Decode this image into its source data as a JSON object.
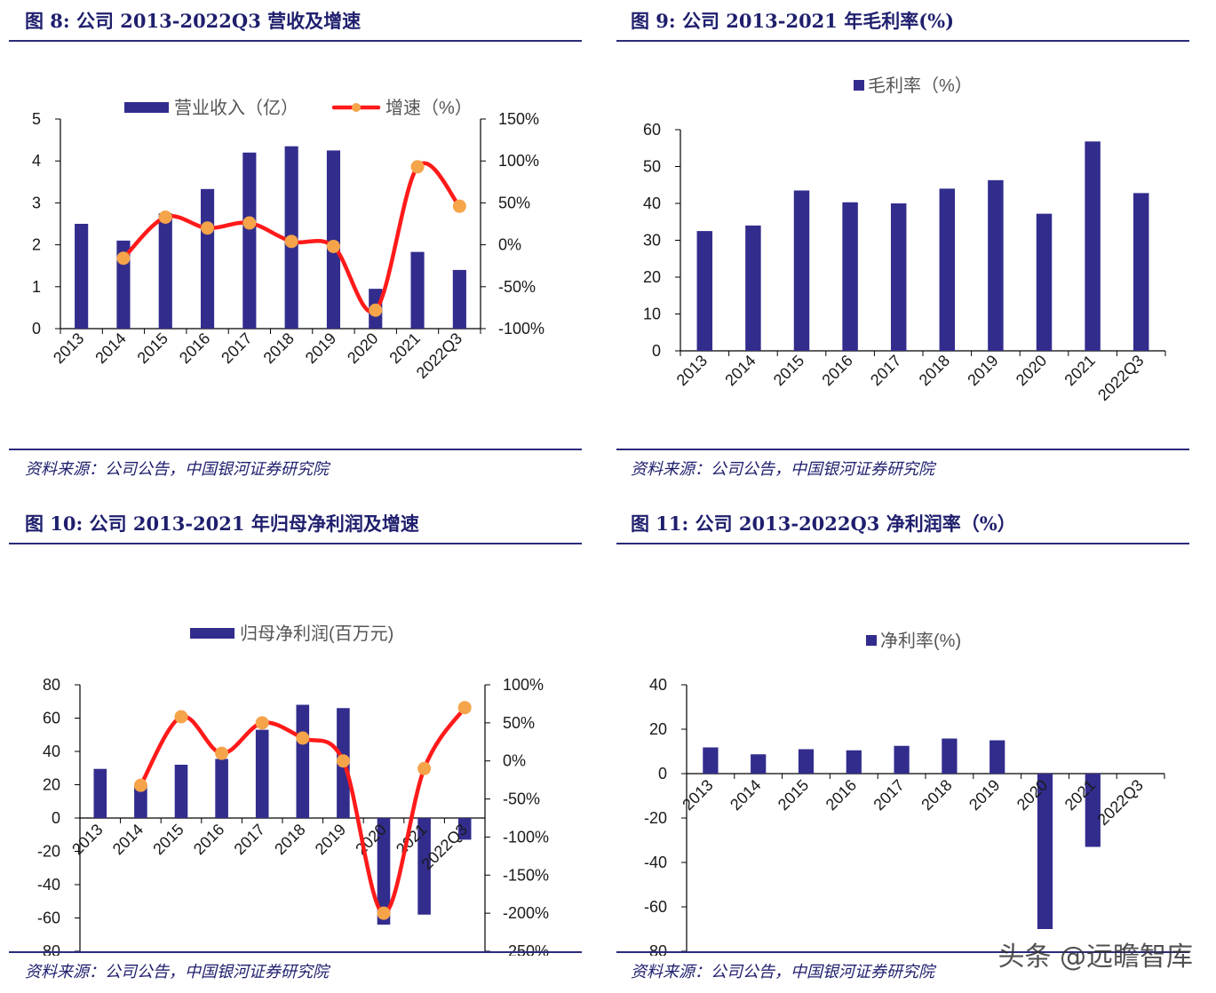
{
  "figures": [
    {
      "title": "图 8:  公司 2013-2022Q3 营收及增速",
      "source": "资料来源：公司公告，中国银河证券研究院",
      "chart_data": {
        "type": "bar",
        "categories": [
          "2013",
          "2014",
          "2015",
          "2016",
          "2017",
          "2018",
          "2019",
          "2020",
          "2021",
          "2022Q3"
        ],
        "series": [
          {
            "name": "营业收入（亿）",
            "type": "bar",
            "axis": "left",
            "values": [
              2.5,
              2.1,
              2.75,
              3.33,
              4.2,
              4.35,
              4.25,
              0.95,
              1.83,
              1.4
            ]
          },
          {
            "name": "增速（%）",
            "type": "line",
            "axis": "right",
            "values": [
              null,
              -16,
              33,
              20,
              26,
              4,
              -2,
              -78,
              93,
              46
            ]
          }
        ],
        "ylim_left": [
          0,
          5
        ],
        "yticks_left": [
          "0",
          "1",
          "2",
          "3",
          "4",
          "5"
        ],
        "ylim_right": [
          -100,
          150
        ],
        "yticks_right": [
          "-100%",
          "-50%",
          "0%",
          "50%",
          "100%",
          "150%"
        ],
        "bar_color": "#322c8d",
        "line_color": "#ff1a1a",
        "marker_color": "#f5a44a",
        "legend": "top"
      }
    },
    {
      "title": "图 9:  公司 2013-2021 年毛利率(%)",
      "source": "资料来源：公司公告，中国银河证券研究院",
      "chart_data": {
        "type": "bar",
        "categories": [
          "2013",
          "2014",
          "2015",
          "2016",
          "2017",
          "2018",
          "2019",
          "2020",
          "2021",
          "2022Q3"
        ],
        "series": [
          {
            "name": "毛利率（%）",
            "values": [
              32.5,
              34,
              43.5,
              40.3,
              40,
              44,
              46.3,
              37.2,
              56.8,
              42.8
            ]
          }
        ],
        "ylim": [
          0,
          60
        ],
        "yticks": [
          "0",
          "10",
          "20",
          "30",
          "40",
          "50",
          "60"
        ],
        "bar_color": "#322c8d",
        "legend": "top"
      }
    },
    {
      "title": "图 10:  公司 2013-2021 年归母净利润及增速",
      "source": "资料来源：公司公告，中国银河证券研究院",
      "chart_data": {
        "type": "bar",
        "categories": [
          "2013",
          "2014",
          "2015",
          "2016",
          "2017",
          "2018",
          "2019",
          "2020",
          "2021",
          "2022Q3"
        ],
        "series": [
          {
            "name": "归母净利润(百万元)",
            "type": "bar",
            "axis": "left",
            "values": [
              29.5,
              20,
              32,
              35.5,
              53,
              68,
              66,
              -64,
              -58,
              -13
            ]
          },
          {
            "type": "line",
            "axis": "right",
            "values": [
              null,
              -32,
              58,
              10,
              50,
              30,
              0,
              -200,
              -10,
              70
            ]
          }
        ],
        "ylim_left": [
          -80,
          80
        ],
        "yticks_left": [
          "-80",
          "-60",
          "-40",
          "-20",
          "0",
          "20",
          "40",
          "60",
          "80"
        ],
        "ylim_right": [
          -250,
          100
        ],
        "yticks_right": [
          "-250%",
          "-200%",
          "-150%",
          "-100%",
          "-50%",
          "0%",
          "50%",
          "100%"
        ],
        "bar_color": "#322c8d",
        "line_color": "#ff1a1a",
        "marker_color": "#f5a44a",
        "legend": "top"
      }
    },
    {
      "title": "图 11:  公司 2013-2022Q3 净利润率（%）",
      "source": "资料来源：公司公告，中国银河证券研究院",
      "chart_data": {
        "type": "bar",
        "categories": [
          "2013",
          "2014",
          "2015",
          "2016",
          "2017",
          "2018",
          "2019",
          "2020",
          "2021",
          "2022Q3"
        ],
        "series": [
          {
            "name": "净利率(%)",
            "values": [
              11.8,
              8.7,
              11,
              10.5,
              12.5,
              15.8,
              15,
              -70,
              -33,
              0
            ]
          }
        ],
        "ylim": [
          -80,
          40
        ],
        "yticks": [
          "-80",
          "-60",
          "-40",
          "-20",
          "0",
          "20",
          "40"
        ],
        "bar_color": "#322c8d",
        "legend": "top"
      }
    }
  ],
  "watermark": "头条 @远瞻智库"
}
